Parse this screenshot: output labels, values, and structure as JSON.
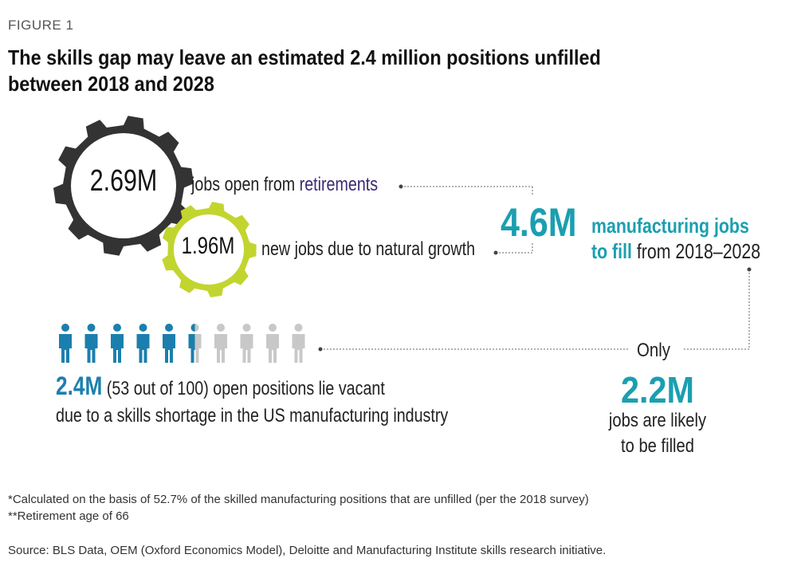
{
  "figure_label": "FIGURE 1",
  "title": "The skills gap may leave an estimated 2.4 million positions unfilled between 2018 and 2028",
  "retirements": {
    "value": "2.69M",
    "text_prefix": "jobs open from ",
    "text_accent": "retirements"
  },
  "growth": {
    "value": "1.96M",
    "text": "new jobs due to natural growth"
  },
  "total": {
    "value": "4.6M",
    "line1": "manufacturing jobs",
    "line2_bold": "to fill",
    "line2_rest": " from 2018–2028"
  },
  "vacant": {
    "value": "2.4M",
    "rest": " (53 out of 100) open positions lie vacant",
    "line2": "due to a skills shortage in the US manufacturing industry",
    "filled_icons": 5.5,
    "total_icons": 10
  },
  "filled": {
    "prefix": "Only",
    "value": "2.2M",
    "line1": "jobs are likely",
    "line2": "to be filled"
  },
  "notes": [
    "*Calculated on the basis of 52.7% of the skilled manufacturing positions that are unfilled (per the 2018 survey)",
    "**Retirement age of 66"
  ],
  "source": "Source: BLS Data, OEM (Oxford Economics Model), Deloitte and Manufacturing Institute skills research initiative.",
  "colors": {
    "dark_gear": "#333333",
    "green_gear": "#c2d52e",
    "teal": "#1b9fb0",
    "person_blue": "#1b7fae",
    "person_gray": "#c8c8c8",
    "accent_purple": "#3c2a74"
  }
}
